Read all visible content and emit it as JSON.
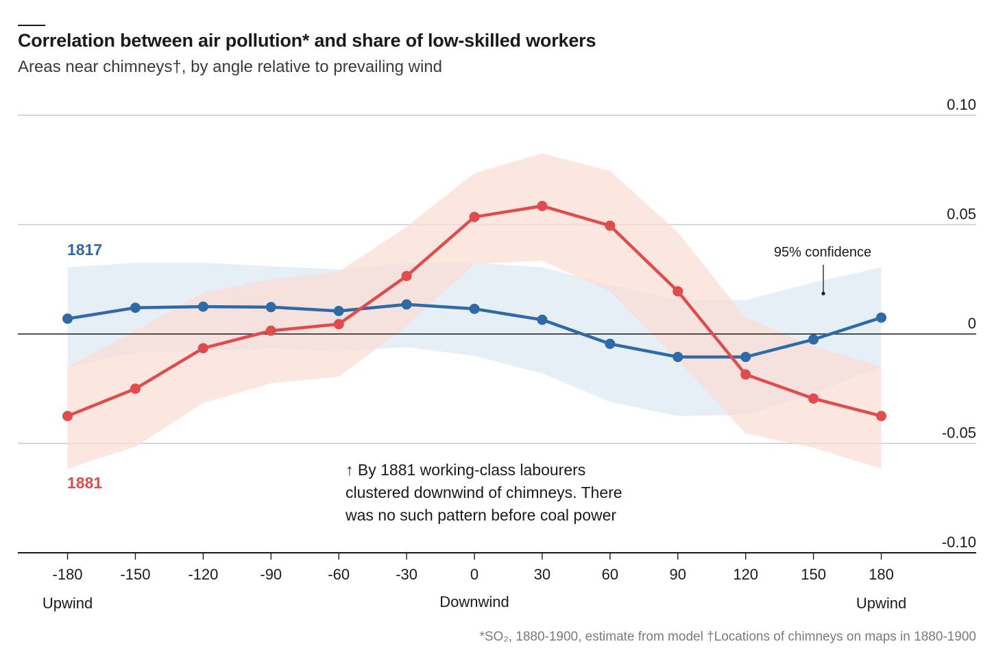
{
  "chart_data": {
    "type": "line",
    "title": "Correlation between air pollution* and share of low-skilled workers",
    "subtitle": "Areas near chimneys†, by angle relative to prevailing wind",
    "footnote": "*SO₂, 1880-1900, estimate from model †Locations of chimneys on maps in 1880-1900",
    "x": [
      -180,
      -150,
      -120,
      -90,
      -60,
      -30,
      0,
      30,
      60,
      90,
      120,
      150,
      180
    ],
    "x_tick_labels": [
      "-180",
      "-150",
      "-120",
      "-90",
      "-60",
      "-30",
      "0",
      "30",
      "60",
      "90",
      "120",
      "150",
      "180"
    ],
    "x_extra_labels": [
      {
        "x": -180,
        "text": "Upwind"
      },
      {
        "x": 0,
        "text": "Downwind"
      },
      {
        "x": 180,
        "text": "Upwind"
      }
    ],
    "xlim": [
      -202,
      222
    ],
    "ylim": [
      -0.1,
      0.1
    ],
    "y_ticks": [
      0.1,
      0.05,
      0,
      -0.05,
      -0.1
    ],
    "y_tick_labels": [
      "0.10",
      "0.05",
      "0",
      "-0.05",
      "-0.10"
    ],
    "grid": true,
    "series": [
      {
        "name": "1817",
        "color": "#2e6aa6",
        "band_color": "#dce9f2",
        "values": [
          0.007,
          0.012,
          0.0125,
          0.0123,
          0.0105,
          0.0135,
          0.0115,
          0.0065,
          -0.0045,
          -0.0105,
          -0.0105,
          -0.0025,
          0.0075
        ],
        "lower": [
          -0.015,
          -0.0085,
          -0.008,
          -0.0065,
          -0.008,
          -0.006,
          -0.01,
          -0.018,
          -0.031,
          -0.0375,
          -0.037,
          -0.027,
          -0.015
        ],
        "upper": [
          0.0305,
          0.0325,
          0.0325,
          0.031,
          0.0295,
          0.0325,
          0.0325,
          0.0305,
          0.0225,
          0.0155,
          0.0155,
          0.0235,
          0.0305
        ]
      },
      {
        "name": "1881",
        "color": "#e04b4b",
        "band_color": "#f9ddd5",
        "values": [
          -0.0375,
          -0.025,
          -0.0065,
          0.0015,
          0.0045,
          0.0265,
          0.0535,
          0.0585,
          0.0495,
          0.0195,
          -0.0185,
          -0.0295,
          -0.0375
        ],
        "lower": [
          -0.0615,
          -0.0515,
          -0.0315,
          -0.0225,
          -0.0195,
          0.0035,
          0.032,
          0.0335,
          0.0195,
          -0.012,
          -0.0455,
          -0.052,
          -0.0615
        ],
        "upper": [
          -0.015,
          0.0015,
          0.019,
          0.025,
          0.0285,
          0.049,
          0.0735,
          0.0825,
          0.0745,
          0.0465,
          0.0075,
          -0.0055,
          -0.015
        ]
      }
    ],
    "annotations": {
      "confidence": "95% confidence",
      "note_lines": [
        "↑ By 1881 working-class labourers",
        "clustered downwind of chimneys. There",
        "was no such pattern before coal power"
      ]
    }
  }
}
